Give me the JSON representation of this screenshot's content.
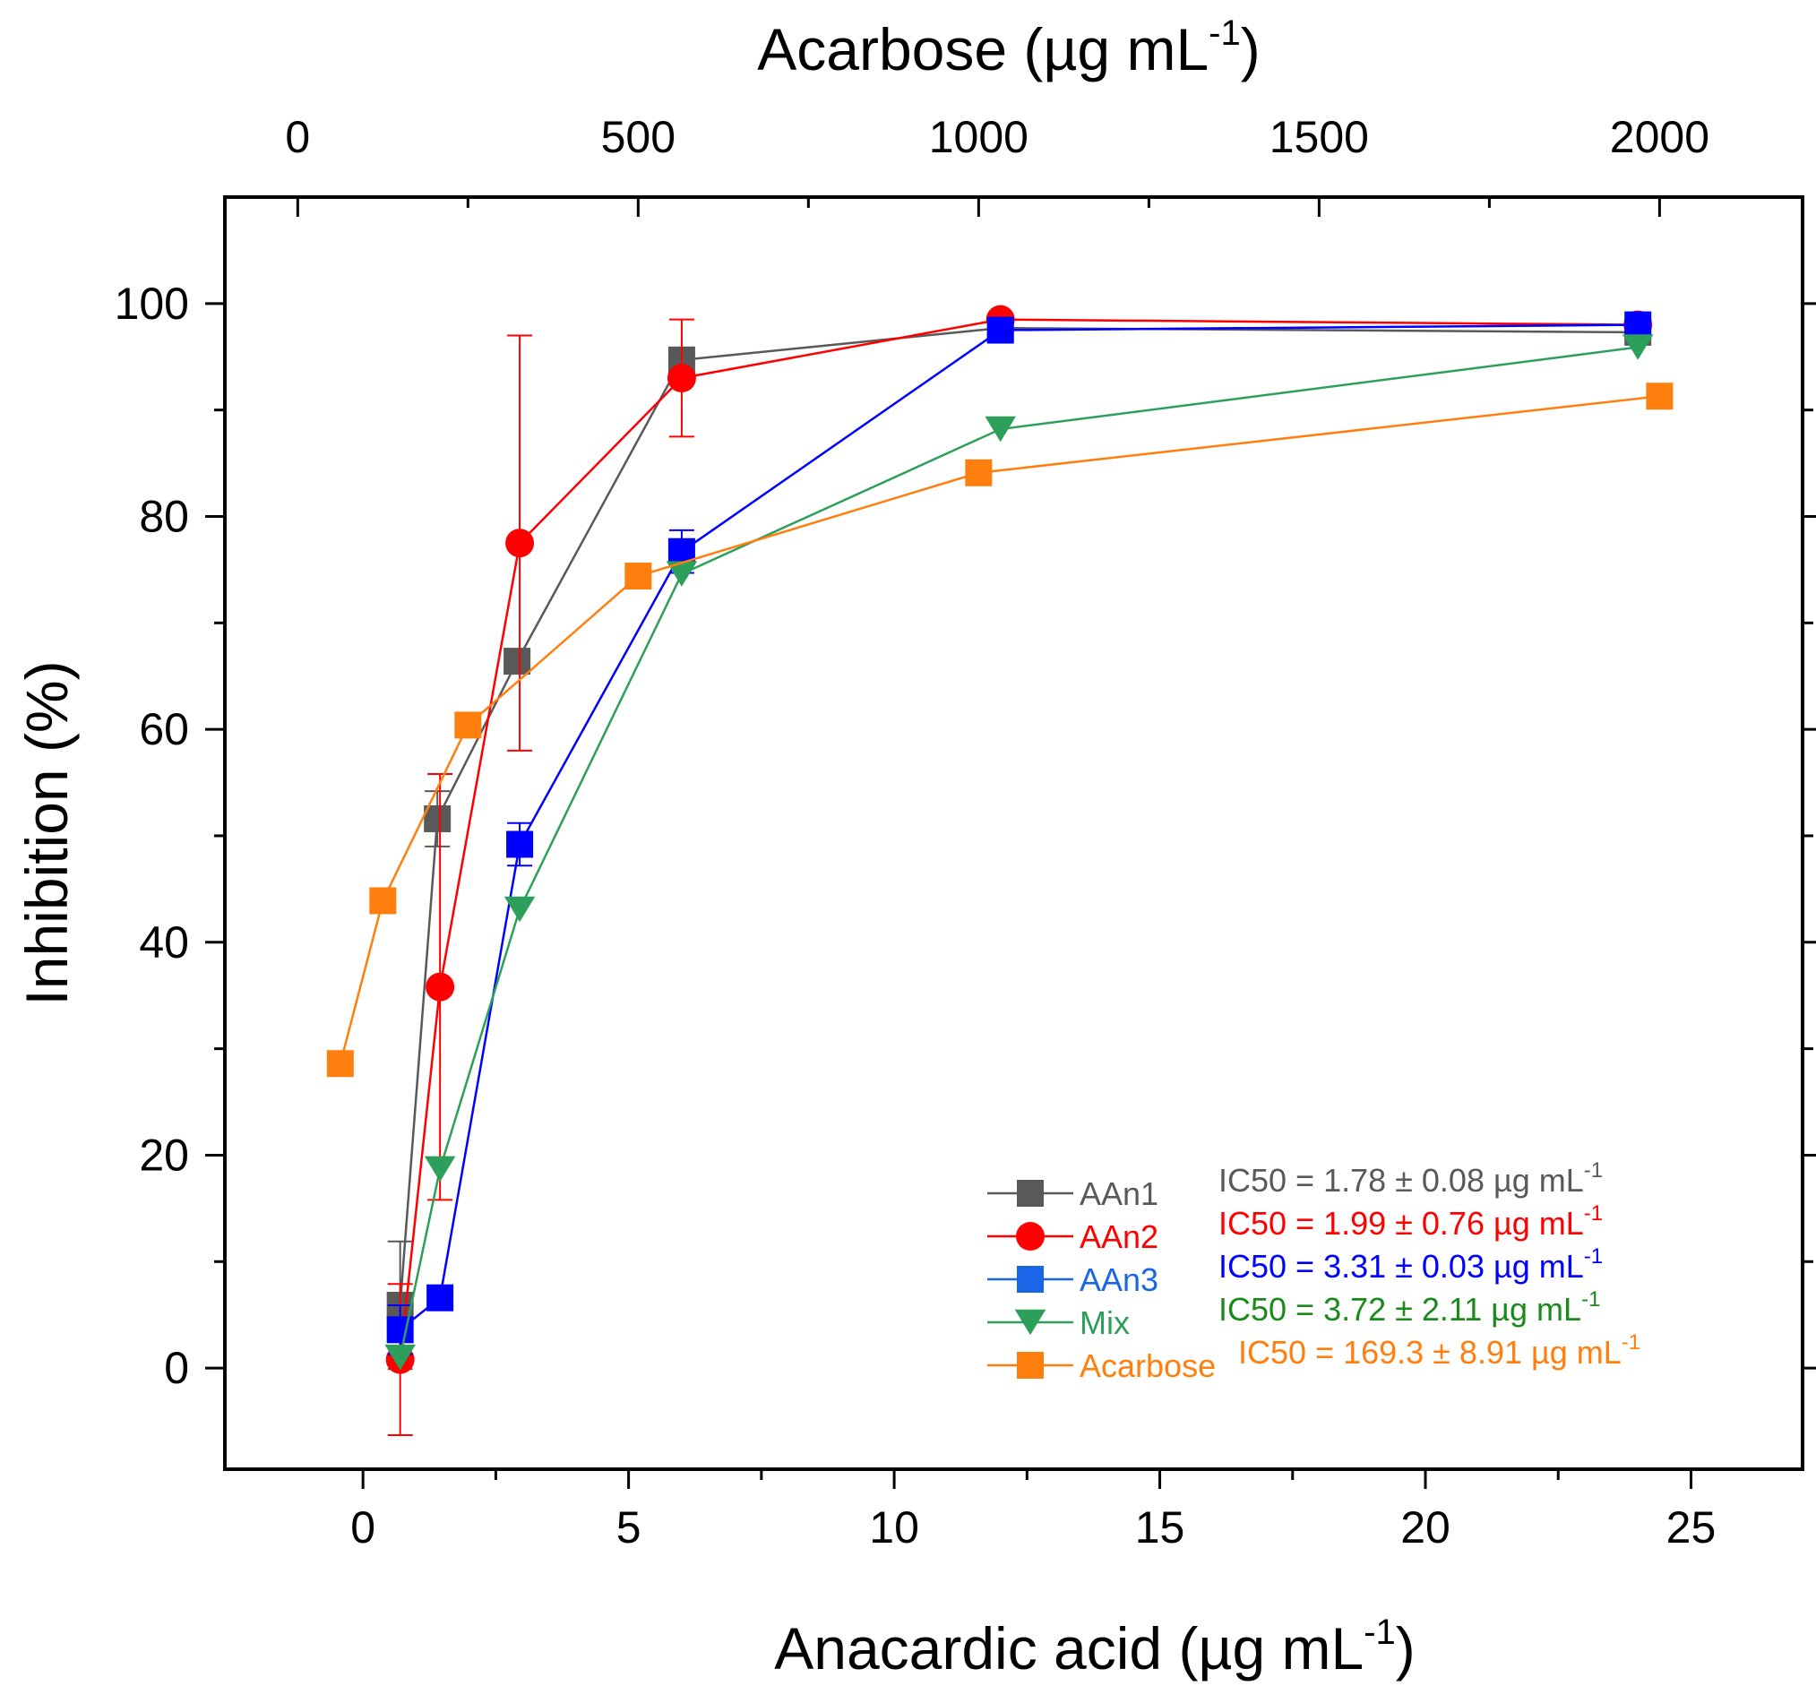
{
  "chart_data": {
    "type": "line",
    "xlabel": "Anacardic acid (µg mL",
    "xlabel_exp": "-1",
    "xlabel_close": ")",
    "x2label": "Acarbose (µg mL",
    "x2label_exp": "-1",
    "x2label_close": ")",
    "ylabel": "Inhibition (%)",
    "xlim": [
      -2.6,
      27.1
    ],
    "x2lim": [
      -107,
      2210
    ],
    "ylim": [
      -9.5,
      110
    ],
    "x_ticks": [
      0,
      5,
      10,
      15,
      20,
      25
    ],
    "x_ticks_minor": [
      2.5,
      7.5,
      12.5,
      17.5,
      22.5
    ],
    "x2_ticks": [
      0,
      500,
      1000,
      1500,
      2000
    ],
    "x2_tick_positions": [
      0,
      500,
      1000,
      1500,
      2000
    ],
    "x2_ticks_minor": [
      250,
      750,
      1250,
      1750
    ],
    "y_ticks": [
      0,
      20,
      40,
      60,
      80,
      100
    ],
    "y_ticks_minor": [
      10,
      30,
      50,
      70,
      90
    ],
    "series": [
      {
        "name": "AAn1",
        "color": "#595959",
        "marker": "square",
        "axis": "bottom",
        "x": [
          0.7,
          1.4,
          2.9,
          6.0,
          12.0,
          24.0
        ],
        "y": [
          5.9,
          51.6,
          66.4,
          94.7,
          97.7,
          97.3
        ],
        "err": [
          6.0,
          2.6,
          1.0,
          0.5,
          0.4,
          0.4
        ]
      },
      {
        "name": "AAn2",
        "color": "#ff0000",
        "marker": "circle",
        "axis": "bottom",
        "x": [
          0.7,
          1.45,
          2.95,
          6.0,
          12.0,
          24.0
        ],
        "y": [
          0.8,
          35.8,
          77.5,
          93.0,
          98.5,
          98.0
        ],
        "err": [
          7.1,
          20.0,
          19.5,
          5.5,
          0.5,
          0.5
        ]
      },
      {
        "name": "AAn3",
        "color": "#0000ff",
        "marker": "square",
        "axis": "bottom",
        "x": [
          0.7,
          1.45,
          2.95,
          6.0,
          12.0,
          24.0
        ],
        "y": [
          3.6,
          6.6,
          49.2,
          76.7,
          97.5,
          98.0
        ],
        "err": [
          2.3,
          0.6,
          2.0,
          2.0,
          0.5,
          0.5
        ]
      },
      {
        "name": "Mix",
        "color": "#2ca05a",
        "marker": "triangle-down",
        "axis": "bottom",
        "x": [
          0.7,
          1.45,
          2.95,
          6.0,
          12.0,
          24.0
        ],
        "y": [
          1.0,
          18.7,
          43.1,
          74.6,
          88.2,
          95.9
        ],
        "err": [
          0.5,
          0.5,
          0.5,
          0.5,
          0.5,
          0.5
        ]
      },
      {
        "name": "Acarbose",
        "color": "#ff7f0e",
        "marker": "square",
        "axis": "top",
        "x": [
          62.5,
          125,
          250,
          500,
          1000,
          2000
        ],
        "y": [
          28.6,
          43.9,
          60.4,
          74.4,
          84.1,
          91.3
        ],
        "err": [
          0,
          0,
          0,
          0,
          0,
          0
        ]
      }
    ],
    "legend": {
      "position": "bottom-right",
      "entries": [
        {
          "label": "AAn1",
          "color": "#595959",
          "marker": "square",
          "ic50": "IC50 = 1.78 ± 0.08 µg mL",
          "ic50_color": "#595959"
        },
        {
          "label": "AAn2",
          "color": "#ff0000",
          "marker": "circle",
          "ic50": "IC50 = 1.99 ± 0.76 µg mL",
          "ic50_color": "#ff0000"
        },
        {
          "label": "AAn3",
          "color": "#1a66e6",
          "marker": "square",
          "ic50": "IC50 = 3.31 ± 0.03 µg mL",
          "ic50_color": "#0000ff"
        },
        {
          "label": "Mix",
          "color": "#2ca05a",
          "marker": "triangle-down",
          "ic50": "IC50 = 3.72 ± 2.11 µg mL",
          "ic50_color": "#1a8a1a"
        },
        {
          "label": "Acarbose",
          "color": "#ff7f0e",
          "marker": "square",
          "ic50": "IC50 = 169.3 ± 8.91 µg mL",
          "ic50_color": "#ff7f0e"
        }
      ],
      "ic50_exp": "-1"
    }
  }
}
